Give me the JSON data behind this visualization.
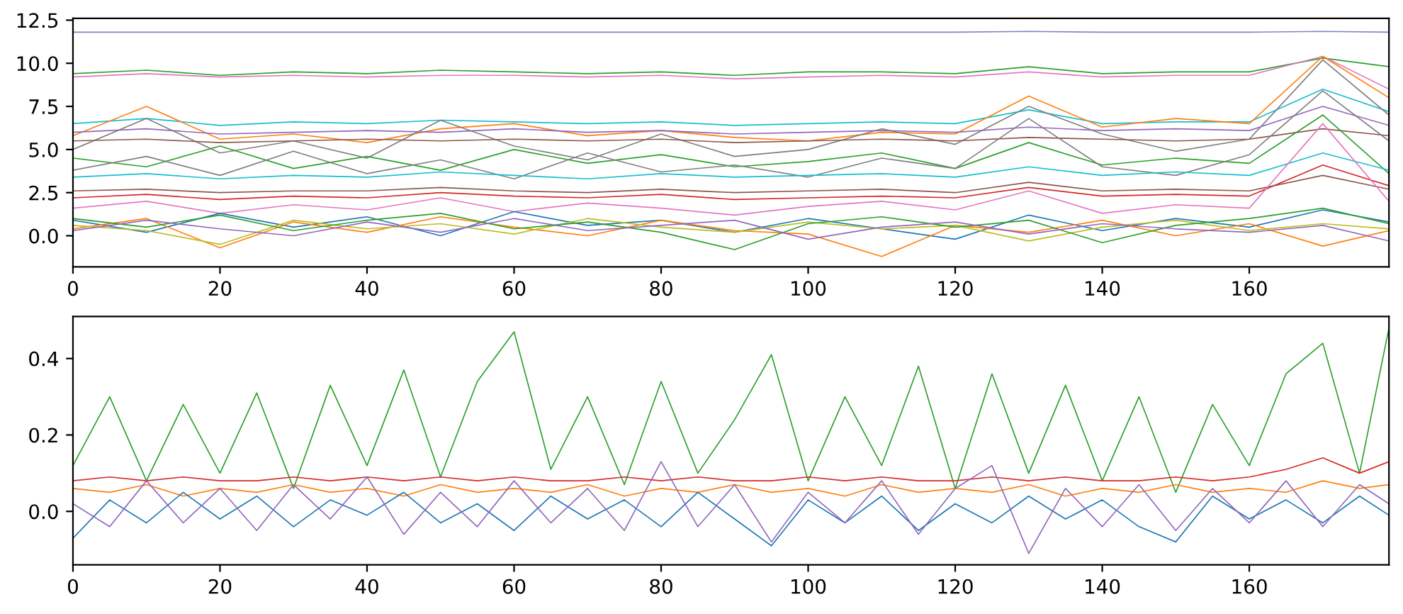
{
  "chart_data": [
    {
      "type": "line",
      "x": [
        0,
        10,
        20,
        30,
        40,
        50,
        60,
        70,
        80,
        90,
        100,
        110,
        120,
        130,
        140,
        150,
        160,
        170,
        179
      ],
      "xlim": [
        0,
        179
      ],
      "xticks": [
        0,
        20,
        40,
        60,
        80,
        100,
        120,
        140,
        160
      ],
      "ylim": [
        -1.8,
        12.6
      ],
      "yticks": [
        {
          "value": 0,
          "label": "0.0"
        },
        {
          "value": 2.5,
          "label": "2.5"
        },
        {
          "value": 5,
          "label": "5.0"
        },
        {
          "value": 7.5,
          "label": "7.5"
        },
        {
          "value": 10,
          "label": "10.0"
        },
        {
          "value": 12.5,
          "label": "12.5"
        }
      ],
      "grid": false,
      "legend": false,
      "series": [
        {
          "color": "#7b86c9",
          "values": [
            11.8,
            11.8,
            11.8,
            11.8,
            11.8,
            11.8,
            11.8,
            11.8,
            11.8,
            11.8,
            11.8,
            11.8,
            11.8,
            11.85,
            11.8,
            11.8,
            11.8,
            11.85,
            11.8
          ]
        },
        {
          "color": "#2ca02c",
          "values": [
            9.4,
            9.6,
            9.3,
            9.5,
            9.4,
            9.6,
            9.5,
            9.4,
            9.5,
            9.3,
            9.5,
            9.5,
            9.4,
            9.8,
            9.4,
            9.5,
            9.5,
            10.3,
            9.8
          ]
        },
        {
          "color": "#e377c2",
          "values": [
            9.2,
            9.4,
            9.2,
            9.3,
            9.2,
            9.3,
            9.3,
            9.2,
            9.3,
            9.1,
            9.2,
            9.3,
            9.2,
            9.5,
            9.2,
            9.3,
            9.3,
            10.4,
            8.5
          ]
        },
        {
          "color": "#17becf",
          "values": [
            6.5,
            6.8,
            6.4,
            6.6,
            6.5,
            6.7,
            6.6,
            6.5,
            6.6,
            6.4,
            6.5,
            6.6,
            6.5,
            7.3,
            6.5,
            6.6,
            6.6,
            8.5,
            7.2
          ]
        },
        {
          "color": "#ff7f0e",
          "values": [
            5.8,
            7.5,
            5.6,
            5.9,
            5.4,
            6.2,
            6.5,
            5.8,
            6.1,
            5.7,
            5.5,
            6.0,
            5.9,
            8.1,
            6.3,
            6.8,
            6.5,
            10.4,
            8.0
          ]
        },
        {
          "color": "#9467bd",
          "values": [
            6.0,
            6.2,
            5.9,
            6.0,
            6.1,
            6.0,
            6.2,
            6.0,
            6.1,
            5.9,
            6.0,
            6.1,
            6.0,
            6.3,
            6.1,
            6.2,
            6.1,
            7.5,
            6.4
          ]
        },
        {
          "color": "#7f7f7f",
          "values": [
            5.0,
            6.8,
            4.8,
            5.5,
            4.5,
            6.7,
            5.2,
            4.4,
            5.9,
            4.6,
            5.0,
            6.2,
            5.3,
            7.5,
            5.9,
            4.9,
            5.6,
            10.2,
            7.0
          ]
        },
        {
          "color": "#8c564b",
          "values": [
            5.5,
            5.6,
            5.4,
            5.5,
            5.6,
            5.5,
            5.6,
            5.5,
            5.6,
            5.4,
            5.5,
            5.6,
            5.5,
            5.7,
            5.6,
            5.5,
            5.6,
            6.2,
            5.8
          ]
        },
        {
          "color": "#2ca02c",
          "values": [
            4.5,
            4.0,
            5.2,
            3.9,
            4.6,
            3.8,
            5.0,
            4.2,
            4.7,
            4.0,
            4.3,
            4.8,
            3.9,
            5.4,
            4.1,
            4.5,
            4.2,
            7.0,
            3.6
          ]
        },
        {
          "color": "#7f7f7f",
          "values": [
            3.8,
            4.6,
            3.5,
            4.9,
            3.6,
            4.4,
            3.3,
            4.8,
            3.7,
            4.1,
            3.4,
            4.5,
            3.9,
            6.8,
            4.0,
            3.5,
            4.7,
            8.4,
            5.5
          ]
        },
        {
          "color": "#17becf",
          "values": [
            3.4,
            3.6,
            3.3,
            3.5,
            3.4,
            3.7,
            3.5,
            3.3,
            3.6,
            3.4,
            3.5,
            3.6,
            3.4,
            4.0,
            3.5,
            3.7,
            3.5,
            4.8,
            3.8
          ]
        },
        {
          "color": "#d62728",
          "values": [
            2.2,
            2.4,
            2.1,
            2.3,
            2.2,
            2.5,
            2.3,
            2.2,
            2.4,
            2.1,
            2.2,
            2.3,
            2.2,
            2.8,
            2.3,
            2.4,
            2.3,
            4.1,
            2.9
          ]
        },
        {
          "color": "#8c564b",
          "values": [
            2.6,
            2.7,
            2.5,
            2.6,
            2.6,
            2.8,
            2.6,
            2.5,
            2.7,
            2.5,
            2.6,
            2.7,
            2.5,
            3.1,
            2.6,
            2.7,
            2.6,
            3.5,
            2.7
          ]
        },
        {
          "color": "#e377c2",
          "values": [
            1.6,
            2.0,
            1.3,
            1.8,
            1.5,
            2.2,
            1.4,
            1.9,
            1.6,
            1.2,
            1.7,
            2.0,
            1.5,
            2.6,
            1.3,
            1.8,
            1.6,
            6.5,
            2.0
          ]
        },
        {
          "color": "#1f77b4",
          "values": [
            0.9,
            0.2,
            1.3,
            0.5,
            1.1,
            0.0,
            1.4,
            0.6,
            0.9,
            0.2,
            1.0,
            0.4,
            -0.2,
            1.2,
            0.3,
            1.0,
            0.5,
            1.5,
            0.8
          ]
        },
        {
          "color": "#ff7f0e",
          "values": [
            0.4,
            1.0,
            -0.7,
            0.8,
            0.2,
            1.1,
            0.5,
            0.0,
            0.9,
            0.3,
            0.1,
            -1.2,
            0.6,
            0.2,
            0.9,
            0.0,
            0.7,
            -0.6,
            0.3
          ]
        },
        {
          "color": "#bcbd22",
          "values": [
            0.6,
            0.3,
            -0.5,
            0.9,
            0.4,
            0.7,
            0.1,
            1.0,
            0.5,
            0.2,
            0.8,
            0.4,
            0.6,
            -0.3,
            0.5,
            0.9,
            0.3,
            0.7,
            0.4
          ]
        },
        {
          "color": "#2ca02c",
          "values": [
            1.0,
            0.5,
            1.2,
            0.3,
            0.9,
            1.3,
            0.4,
            0.8,
            0.2,
            -0.8,
            0.7,
            1.1,
            0.5,
            0.9,
            -0.4,
            0.6,
            1.0,
            1.6,
            0.7
          ]
        },
        {
          "color": "#9467bd",
          "values": [
            0.3,
            0.9,
            0.4,
            0.0,
            0.8,
            0.2,
            1.0,
            0.3,
            0.6,
            0.9,
            -0.2,
            0.5,
            0.8,
            0.1,
            0.7,
            0.4,
            0.2,
            0.6,
            -0.3
          ]
        }
      ]
    },
    {
      "type": "line",
      "x": [
        0,
        5,
        10,
        15,
        20,
        25,
        30,
        35,
        40,
        45,
        50,
        55,
        60,
        65,
        70,
        75,
        80,
        85,
        90,
        95,
        100,
        105,
        110,
        115,
        120,
        125,
        130,
        135,
        140,
        145,
        150,
        155,
        160,
        165,
        170,
        175,
        179
      ],
      "xlim": [
        0,
        179
      ],
      "xticks": [
        0,
        20,
        40,
        60,
        80,
        100,
        120,
        140,
        160
      ],
      "ylim": [
        -0.14,
        0.51
      ],
      "yticks": [
        {
          "value": 0,
          "label": "0.0"
        },
        {
          "value": 0.2,
          "label": "0.2"
        },
        {
          "value": 0.4,
          "label": "0.4"
        }
      ],
      "grid": false,
      "legend": false,
      "series": [
        {
          "color": "#2ca02c",
          "values": [
            0.12,
            0.3,
            0.08,
            0.28,
            0.1,
            0.31,
            0.06,
            0.33,
            0.12,
            0.37,
            0.09,
            0.34,
            0.47,
            0.11,
            0.3,
            0.07,
            0.34,
            0.1,
            0.24,
            0.41,
            0.08,
            0.3,
            0.12,
            0.38,
            0.06,
            0.36,
            0.1,
            0.33,
            0.08,
            0.3,
            0.05,
            0.28,
            0.12,
            0.36,
            0.44,
            0.1,
            0.48
          ]
        },
        {
          "color": "#d62728",
          "values": [
            0.08,
            0.09,
            0.08,
            0.09,
            0.08,
            0.08,
            0.09,
            0.08,
            0.09,
            0.08,
            0.09,
            0.08,
            0.09,
            0.08,
            0.08,
            0.09,
            0.08,
            0.09,
            0.08,
            0.08,
            0.09,
            0.08,
            0.09,
            0.08,
            0.08,
            0.09,
            0.08,
            0.09,
            0.08,
            0.08,
            0.09,
            0.08,
            0.09,
            0.11,
            0.14,
            0.1,
            0.13
          ]
        },
        {
          "color": "#ff7f0e",
          "values": [
            0.06,
            0.05,
            0.07,
            0.04,
            0.06,
            0.05,
            0.07,
            0.05,
            0.06,
            0.04,
            0.07,
            0.05,
            0.06,
            0.05,
            0.07,
            0.04,
            0.06,
            0.05,
            0.07,
            0.05,
            0.06,
            0.04,
            0.07,
            0.05,
            0.06,
            0.05,
            0.07,
            0.04,
            0.06,
            0.05,
            0.07,
            0.05,
            0.06,
            0.05,
            0.08,
            0.06,
            0.07
          ]
        },
        {
          "color": "#1f77b4",
          "values": [
            -0.07,
            0.03,
            -0.03,
            0.05,
            -0.02,
            0.04,
            -0.04,
            0.03,
            -0.01,
            0.05,
            -0.03,
            0.02,
            -0.05,
            0.04,
            -0.02,
            0.03,
            -0.04,
            0.05,
            -0.02,
            -0.09,
            0.03,
            -0.03,
            0.04,
            -0.05,
            0.02,
            -0.03,
            0.04,
            -0.02,
            0.03,
            -0.04,
            -0.08,
            0.04,
            -0.02,
            0.03,
            -0.03,
            0.04,
            -0.01
          ]
        },
        {
          "color": "#9467bd",
          "values": [
            0.02,
            -0.04,
            0.08,
            -0.03,
            0.06,
            -0.05,
            0.07,
            -0.02,
            0.09,
            -0.06,
            0.05,
            -0.04,
            0.08,
            -0.03,
            0.06,
            -0.05,
            0.13,
            -0.04,
            0.07,
            -0.08,
            0.05,
            -0.03,
            0.08,
            -0.06,
            0.06,
            0.12,
            -0.11,
            0.06,
            -0.04,
            0.07,
            -0.05,
            0.06,
            -0.03,
            0.08,
            -0.04,
            0.07,
            0.02
          ]
        }
      ]
    }
  ]
}
